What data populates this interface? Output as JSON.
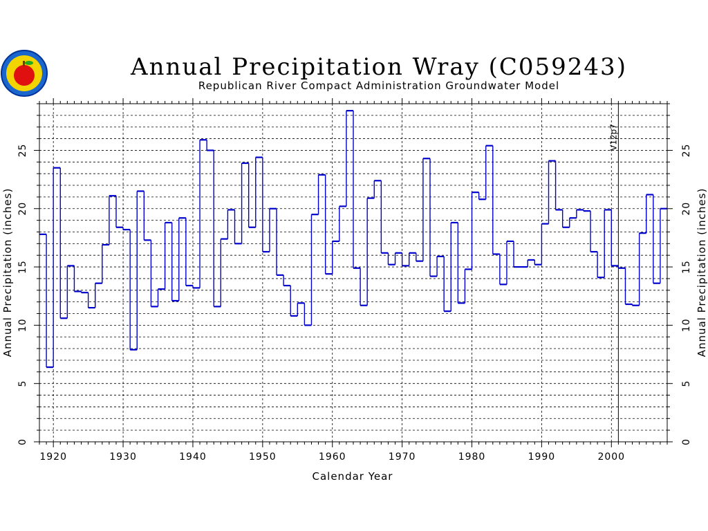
{
  "chart_data": {
    "type": "line",
    "step": true,
    "title": "Annual Precipitation Wray (C059243)",
    "subtitle": "Republican River Compact Administration Groundwater Model",
    "xlabel": "Calendar Year",
    "ylabel": "Annual Precipitation (inches)",
    "ylabel_right": "Annual Precipitation (inches)",
    "xlim": [
      1918,
      2008
    ],
    "ylim": [
      0,
      29
    ],
    "x_ticks": [
      1920,
      1930,
      1940,
      1950,
      1960,
      1970,
      1980,
      1990,
      2000
    ],
    "y_ticks": [
      0,
      5,
      10,
      15,
      20,
      25
    ],
    "grid": true,
    "line_color": "#0000cc",
    "annotation": {
      "x": 2001,
      "label": "V12p7"
    },
    "x": [
      1918,
      1919,
      1920,
      1921,
      1922,
      1923,
      1924,
      1925,
      1926,
      1927,
      1928,
      1929,
      1930,
      1931,
      1932,
      1933,
      1934,
      1935,
      1936,
      1937,
      1938,
      1939,
      1940,
      1941,
      1942,
      1943,
      1944,
      1945,
      1946,
      1947,
      1948,
      1949,
      1950,
      1951,
      1952,
      1953,
      1954,
      1955,
      1956,
      1957,
      1958,
      1959,
      1960,
      1961,
      1962,
      1963,
      1964,
      1965,
      1966,
      1967,
      1968,
      1969,
      1970,
      1971,
      1972,
      1973,
      1974,
      1975,
      1976,
      1977,
      1978,
      1979,
      1980,
      1981,
      1982,
      1983,
      1984,
      1985,
      1986,
      1987,
      1988,
      1989,
      1990,
      1991,
      1992,
      1993,
      1994,
      1995,
      1996,
      1997,
      1998,
      1999,
      2000,
      2001,
      2002,
      2003,
      2004,
      2005,
      2006,
      2007
    ],
    "values": [
      17.8,
      6.4,
      23.5,
      10.6,
      15.1,
      12.9,
      12.8,
      11.5,
      13.6,
      16.9,
      21.1,
      18.4,
      18.2,
      7.9,
      21.5,
      17.3,
      11.6,
      13.1,
      18.8,
      12.1,
      19.2,
      13.4,
      13.2,
      25.9,
      25.0,
      11.6,
      17.4,
      19.9,
      17.0,
      23.9,
      18.4,
      24.4,
      16.3,
      20.0,
      14.3,
      13.4,
      10.8,
      11.9,
      10.0,
      19.5,
      22.9,
      14.4,
      17.2,
      20.2,
      28.4,
      14.9,
      11.7,
      20.9,
      22.4,
      16.2,
      15.2,
      16.2,
      15.1,
      16.2,
      15.5,
      24.3,
      14.2,
      15.9,
      11.2,
      18.8,
      11.9,
      14.8,
      21.4,
      20.8,
      25.4,
      16.1,
      13.5,
      17.2,
      15.0,
      15.0,
      15.6,
      15.2,
      18.7,
      24.1,
      19.9,
      18.4,
      19.2,
      19.9,
      19.8,
      16.3,
      14.1,
      19.9,
      15.1,
      14.9,
      11.8,
      11.7,
      17.9,
      21.2,
      13.6,
      20.0
    ]
  }
}
